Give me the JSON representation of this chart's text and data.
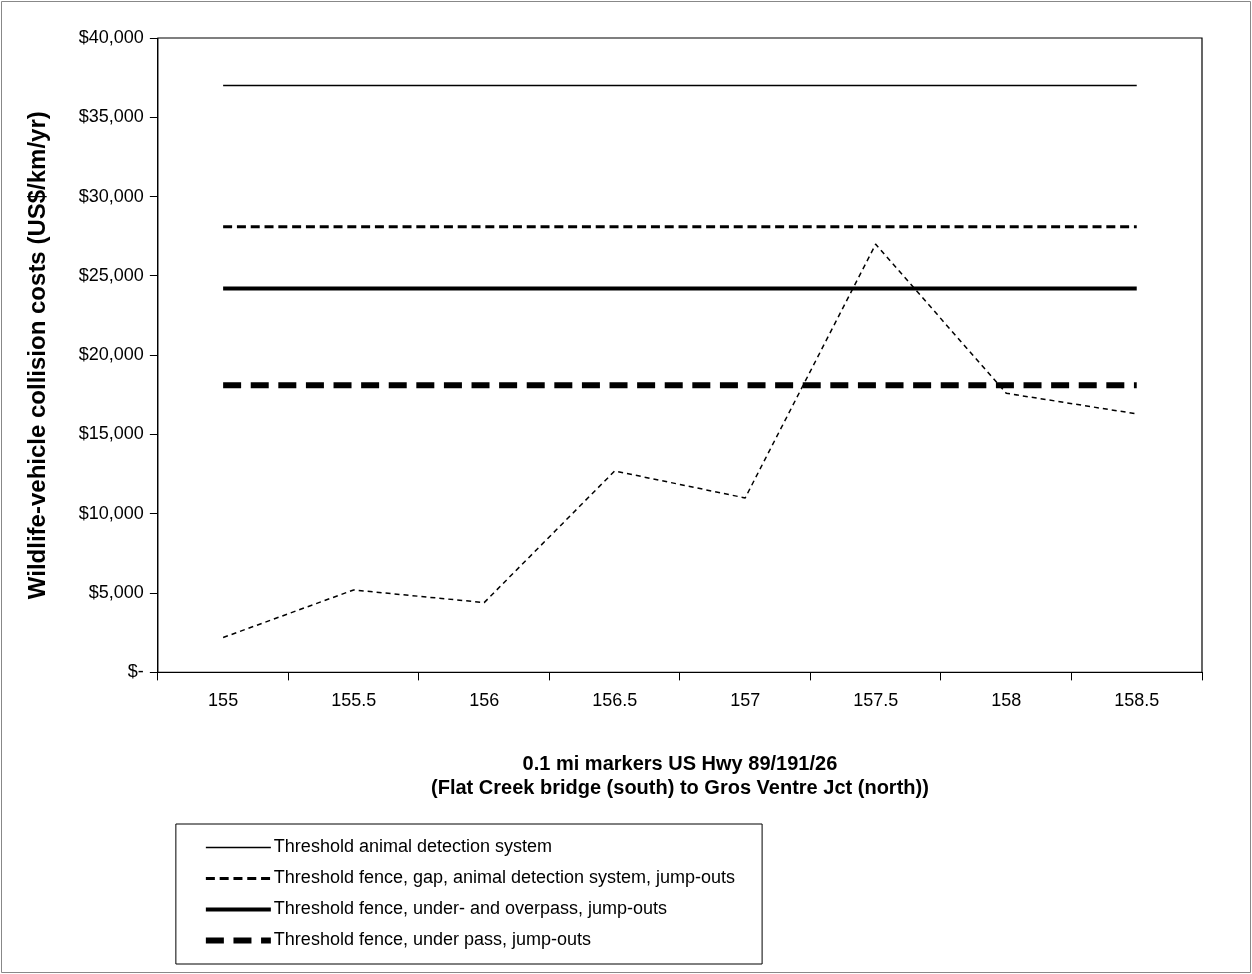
{
  "chart_data": {
    "type": "line",
    "xlabel": "0.1 mi markers US Hwy 89/191/26\n(Flat Creek bridge (south) to Gros Ventre Jct (north))",
    "ylabel": "Wildlife-vehicle collision costs (US$/km/yr)",
    "categories": [
      "155",
      "155.5",
      "156",
      "156.5",
      "157",
      "157.5",
      "158",
      "158.5"
    ],
    "ylim": [
      0,
      40000
    ],
    "yticks": [
      {
        "value": 0,
        "label": "$-"
      },
      {
        "value": 5000,
        "label": "$5,000"
      },
      {
        "value": 10000,
        "label": "$10,000"
      },
      {
        "value": 15000,
        "label": "$15,000"
      },
      {
        "value": 20000,
        "label": "$20,000"
      },
      {
        "value": 25000,
        "label": "$25,000"
      },
      {
        "value": 30000,
        "label": "$30,000"
      },
      {
        "value": 35000,
        "label": "$35,000"
      },
      {
        "value": 40000,
        "label": "$40,000"
      }
    ],
    "grid": false,
    "legend": "bottom",
    "marker": "none",
    "series": [
      {
        "name": "Threshold animal detection system",
        "color": "#000000",
        "line_style": "solid",
        "values": [
          37000,
          37000,
          37000,
          37000,
          37000,
          37000,
          37000,
          37000
        ]
      },
      {
        "name": "Threshold fence, gap, animal detection system, jump-outs",
        "color": "#000000",
        "line_style": "dashed",
        "values": [
          28100,
          28100,
          28100,
          28100,
          28100,
          28100,
          28100,
          28100
        ]
      },
      {
        "name": "Threshold fence, under- and overpass, jump-outs",
        "color": "#000000",
        "line_style": "solid",
        "values": [
          24200,
          24200,
          24200,
          24200,
          24200,
          24200,
          24200,
          24200
        ]
      },
      {
        "name": "Threshold fence, under pass, jump-outs",
        "color": "#000000",
        "line_style": "dashed",
        "values": [
          18100,
          18100,
          18100,
          18100,
          18100,
          18100,
          18100,
          18100
        ]
      },
      {
        "color": "#000000",
        "line_style": "dashed",
        "values": [
          2200,
          5200,
          4400,
          12700,
          11000,
          27000,
          17600,
          16300
        ]
      }
    ]
  }
}
